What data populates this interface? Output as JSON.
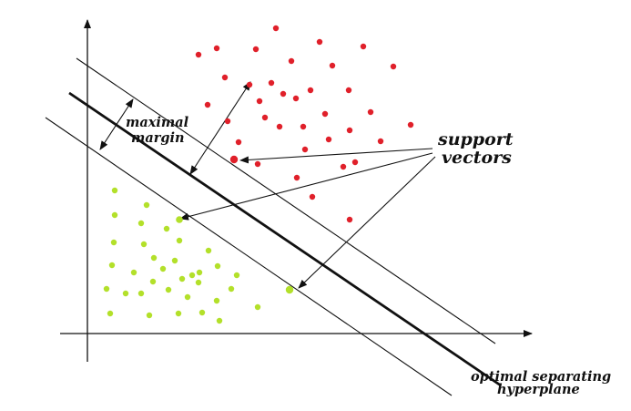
{
  "labels": {
    "margin_line1": "maximal",
    "margin_line2": "margin",
    "support_line1": "support",
    "support_line2": "vectors",
    "hyperplane_line1": "optimal separating",
    "hyperplane_line2": "hyperplane"
  },
  "colors": {
    "class_a": "#e0202a",
    "class_b": "#b3e02a",
    "ink": "#111111"
  }
}
